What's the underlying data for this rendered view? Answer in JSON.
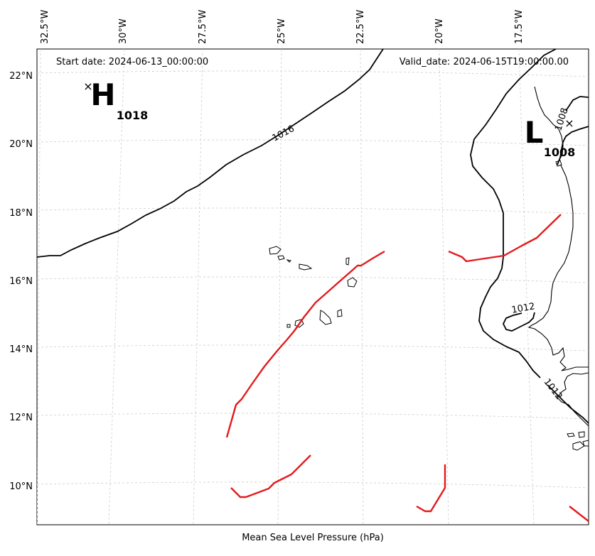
{
  "map": {
    "start_date": "Start date: 2024-06-13_00:00:00",
    "valid_date": "Valid_date: 2024-06-15T19:00:00.00",
    "caption": "Mean Sea Level Pressure (hPa)",
    "lon_labels": [
      "32.5°W",
      "30°W",
      "27.5°W",
      "25°W",
      "22.5°W",
      "20°W",
      "17.5°W"
    ],
    "lat_labels": [
      "22°N",
      "20°N",
      "18°N",
      "16°N",
      "14°N",
      "12°N",
      "10°N"
    ],
    "contour_labels": [
      "1016",
      "1008",
      "1012",
      "1012"
    ],
    "high": {
      "letter": "H",
      "value": "1018"
    },
    "low": {
      "letter": "L",
      "value": "1008"
    },
    "colors": {
      "isobar": "#000000",
      "front": "#e31a1c",
      "grid": "#cccccc"
    }
  }
}
